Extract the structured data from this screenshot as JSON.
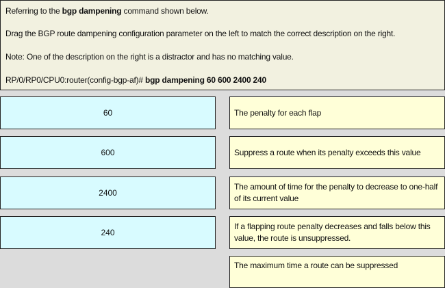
{
  "instructions": {
    "line1_pre": "Referring to the ",
    "line1_bold": "bgp dampening",
    "line1_post": " command shown below.",
    "line2": "Drag the BGP route dampening configuration parameter on the left to match the correct description on the right.",
    "line3": "Note: One of the description on the right is a distractor and has no matching value.",
    "prompt": "RP/0/RP0/CPU0:router(config-bgp-af)#",
    "command": " bgp dampening 60 600 2400 240"
  },
  "parameters": [
    "60",
    "600",
    "2400",
    "240"
  ],
  "descriptions": [
    "The penalty for each flap",
    "Suppress a route when its penalty exceeds this value",
    "The amount of time for the penalty to decrease to one-half of its current value",
    "If a flapping route penalty decreases and falls below this value, the route is unsuppressed.",
    "The maximum time a route can be suppressed"
  ],
  "colors": {
    "parameter_bg": "#d8fbff",
    "description_bg": "#ffffd8",
    "header_bg": "#f2f1e0"
  }
}
